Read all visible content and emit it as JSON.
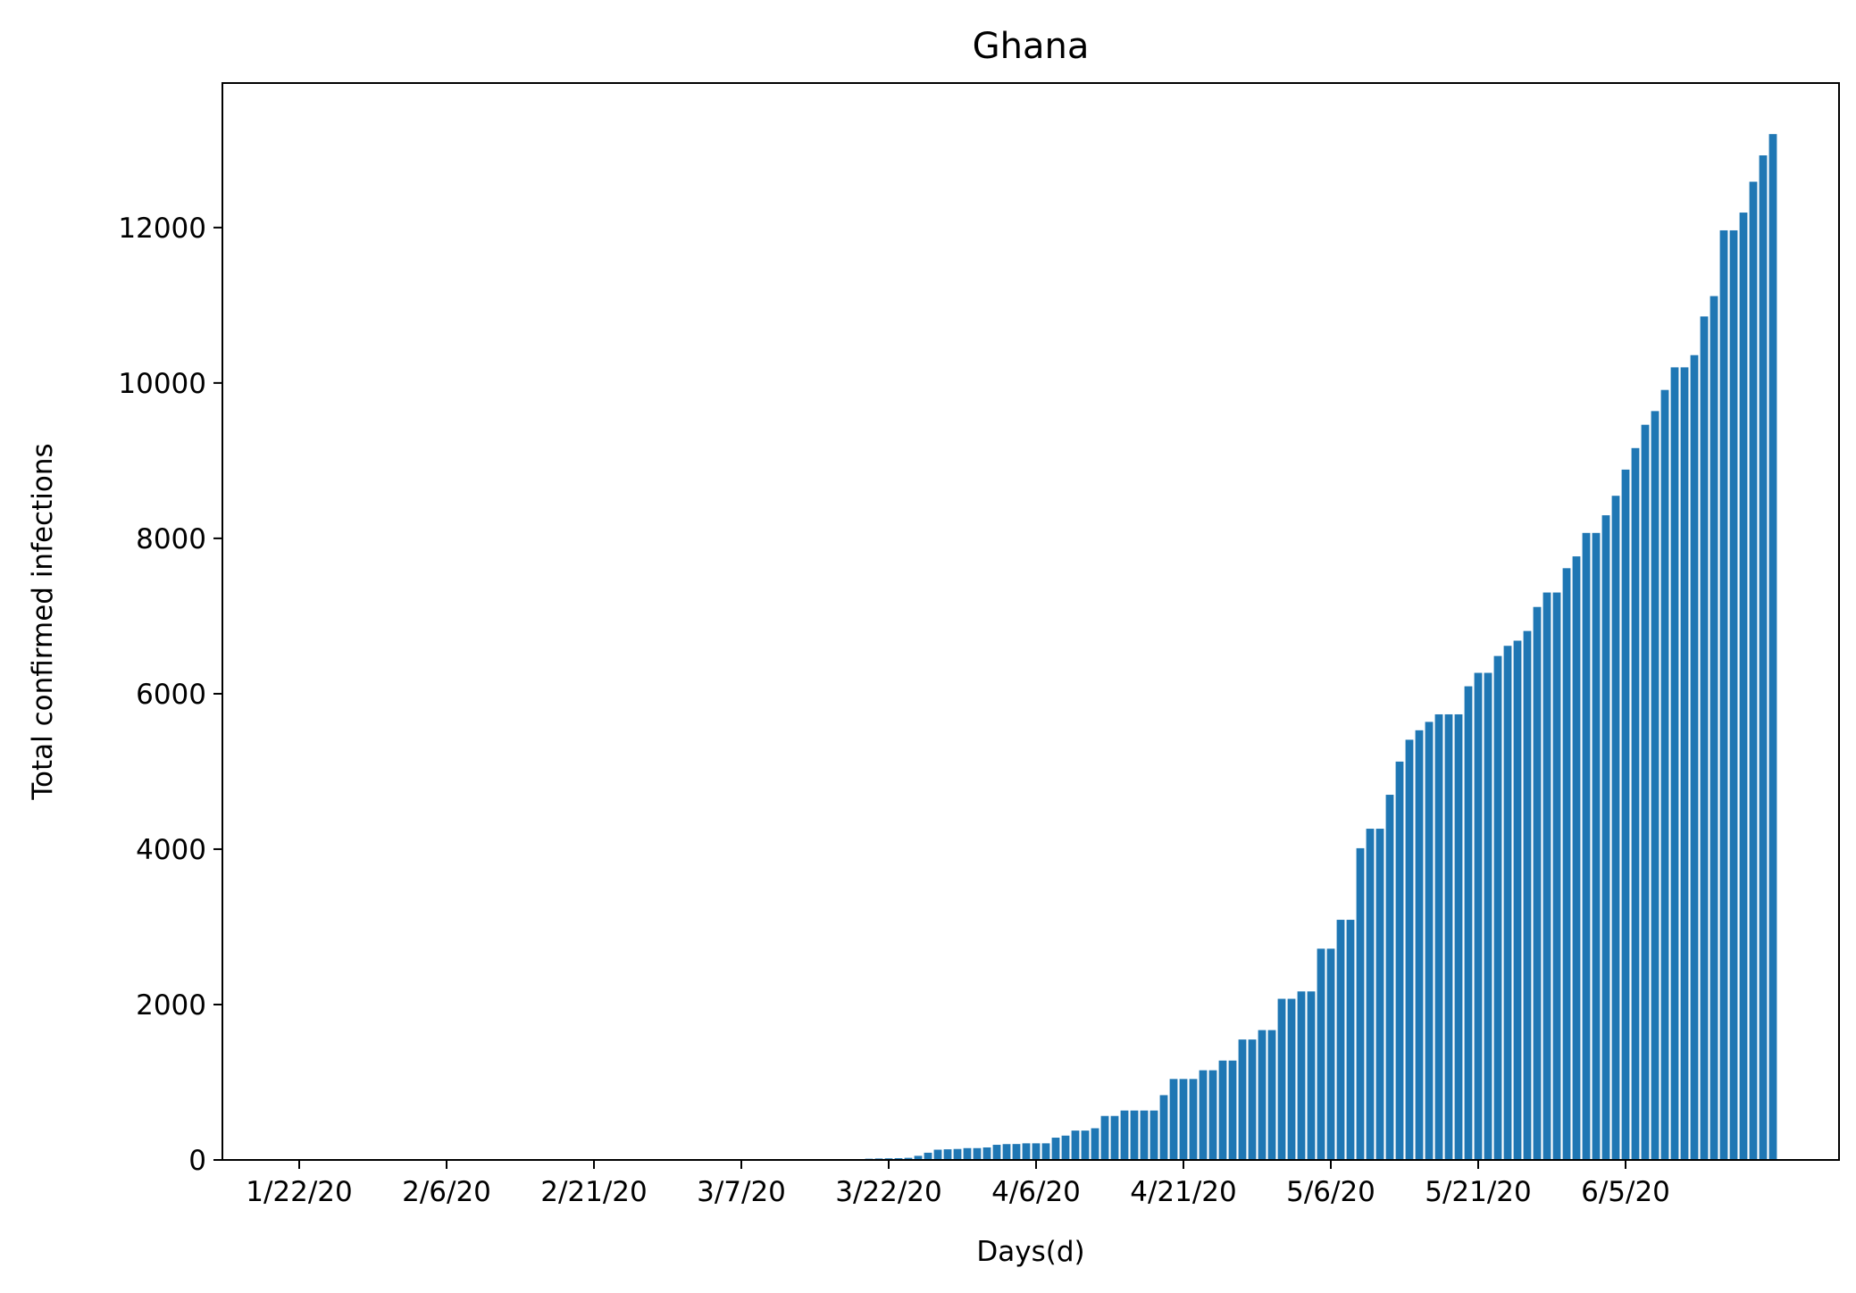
{
  "chart_data": {
    "type": "bar",
    "title": "Ghana",
    "xlabel": "Days(d)",
    "ylabel": "Total confirmed infections",
    "start_date": "1/22/20",
    "x_tick_labels": [
      "1/22/20",
      "2/6/20",
      "2/21/20",
      "3/7/20",
      "3/22/20",
      "4/6/20",
      "4/21/20",
      "5/6/20",
      "5/21/20",
      "6/5/20"
    ],
    "y_ticks": [
      0,
      2000,
      4000,
      6000,
      8000,
      10000,
      12000
    ],
    "ylim": [
      0,
      13860
    ],
    "grid": false,
    "bar_color": "#1f77b4",
    "values": [
      0,
      0,
      0,
      0,
      0,
      0,
      0,
      0,
      0,
      0,
      0,
      0,
      0,
      0,
      0,
      0,
      0,
      0,
      0,
      0,
      0,
      0,
      0,
      0,
      0,
      0,
      0,
      0,
      0,
      0,
      0,
      0,
      0,
      0,
      0,
      0,
      0,
      0,
      0,
      0,
      0,
      0,
      0,
      0,
      0,
      0,
      0,
      0,
      0,
      0,
      0,
      0,
      0,
      2,
      2,
      6,
      7,
      11,
      16,
      19,
      21,
      23,
      27,
      53,
      93,
      132,
      137,
      141,
      152,
      152,
      161,
      195,
      204,
      205,
      214,
      214,
      214,
      287,
      313,
      378,
      378,
      408,
      566,
      566,
      636,
      636,
      636,
      636,
      834,
      1042,
      1042,
      1042,
      1154,
      1154,
      1279,
      1279,
      1550,
      1550,
      1671,
      1671,
      2074,
      2074,
      2169,
      2169,
      2719,
      2719,
      3091,
      3091,
      4012,
      4263,
      4263,
      4700,
      5127,
      5408,
      5530,
      5638,
      5735,
      5735,
      5735,
      6096,
      6269,
      6269,
      6486,
      6617,
      6683,
      6808,
      7117,
      7303,
      7303,
      7616,
      7768,
      8070,
      8070,
      8297,
      8548,
      8885,
      9162,
      9462,
      9638,
      9910,
      10201,
      10201,
      10358,
      10856,
      11118,
      11964,
      11964,
      12193,
      12590,
      12929,
      13203
    ]
  }
}
